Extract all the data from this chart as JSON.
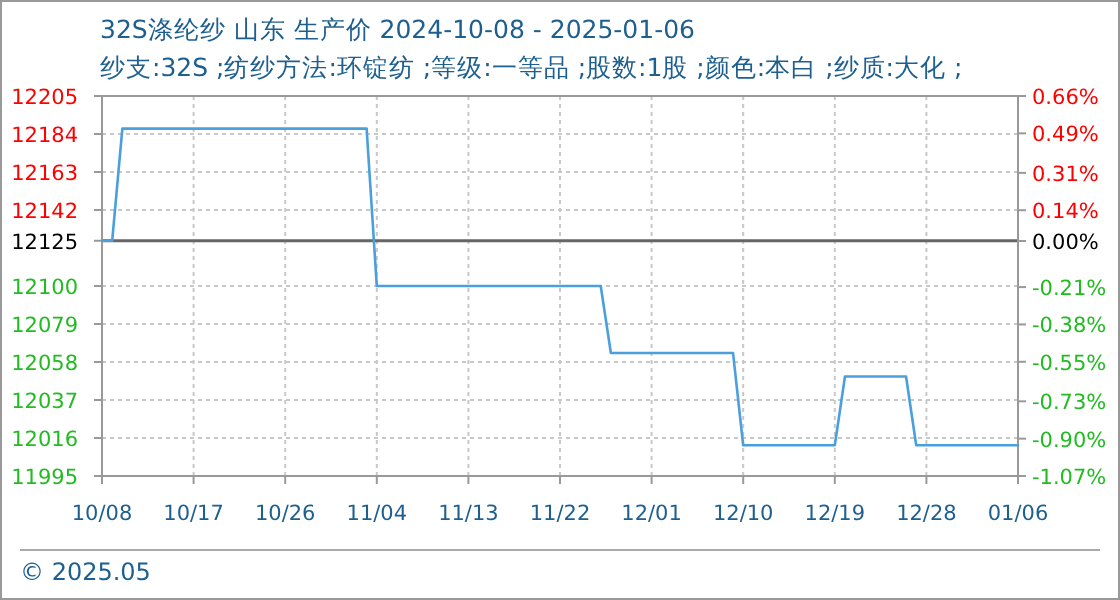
{
  "chart_data": {
    "type": "line",
    "title": "32S涤纶纱 山东 生产价 2024-10-08 - 2025-01-06",
    "subtitle": "纱支:32S ;纺纱方法:环锭纺 ;等级:一等品 ;股数:1股 ;颜色:本白 ;纱质:大化 ;",
    "series": [
      {
        "color": "#4a9fdc",
        "x": [
          "2024-10-08",
          "2024-10-09",
          "2024-10-10",
          "2024-11-03",
          "2024-11-04",
          "2024-11-26",
          "2024-11-27",
          "2024-12-09",
          "2024-12-10",
          "2024-12-19",
          "2024-12-20",
          "2024-12-26",
          "2024-12-27",
          "2025-01-06"
        ],
        "values": [
          12125,
          12125,
          12187,
          12187,
          12100,
          12100,
          12063,
          12063,
          12012,
          12012,
          12050,
          12050,
          12012,
          12012
        ]
      }
    ],
    "xlim": [
      "2024-10-08",
      "2025-01-06"
    ],
    "xticks": [
      {
        "value": "2024-10-08",
        "label": "10/08"
      },
      {
        "value": "2024-10-17",
        "label": "10/17"
      },
      {
        "value": "2024-10-26",
        "label": "10/26"
      },
      {
        "value": "2024-11-04",
        "label": "11/04"
      },
      {
        "value": "2024-11-13",
        "label": "11/13"
      },
      {
        "value": "2024-11-22",
        "label": "11/22"
      },
      {
        "value": "2024-12-01",
        "label": "12/01"
      },
      {
        "value": "2024-12-10",
        "label": "12/10"
      },
      {
        "value": "2024-12-19",
        "label": "12/19"
      },
      {
        "value": "2024-12-28",
        "label": "12/28"
      },
      {
        "value": "2025-01-06",
        "label": "01/06"
      }
    ],
    "ylim": [
      11995,
      12205
    ],
    "yticks": [
      11995,
      12016,
      12037,
      12058,
      12079,
      12100,
      12125,
      12142,
      12163,
      12184,
      12205
    ],
    "y2lim": [
      -1.07,
      0.66
    ],
    "y2ticks": [
      {
        "value": -1.07,
        "label": "-1.07%"
      },
      {
        "value": -0.9,
        "label": "-0.90%"
      },
      {
        "value": -0.73,
        "label": "-0.73%"
      },
      {
        "value": -0.55,
        "label": "-0.55%"
      },
      {
        "value": -0.38,
        "label": "-0.38%"
      },
      {
        "value": -0.21,
        "label": "-0.21%"
      },
      {
        "value": 0,
        "label": "0.00%"
      },
      {
        "value": 0.14,
        "label": "0.14%"
      },
      {
        "value": 0.31,
        "label": "0.31%"
      },
      {
        "value": 0.49,
        "label": "0.49%"
      },
      {
        "value": 0.66,
        "label": "0.66%"
      }
    ],
    "ref_lines": [
      {
        "axis": "y",
        "value": 12125,
        "color": "#666666"
      }
    ],
    "grid": true,
    "annotations": [
      "© 2025.05"
    ]
  }
}
